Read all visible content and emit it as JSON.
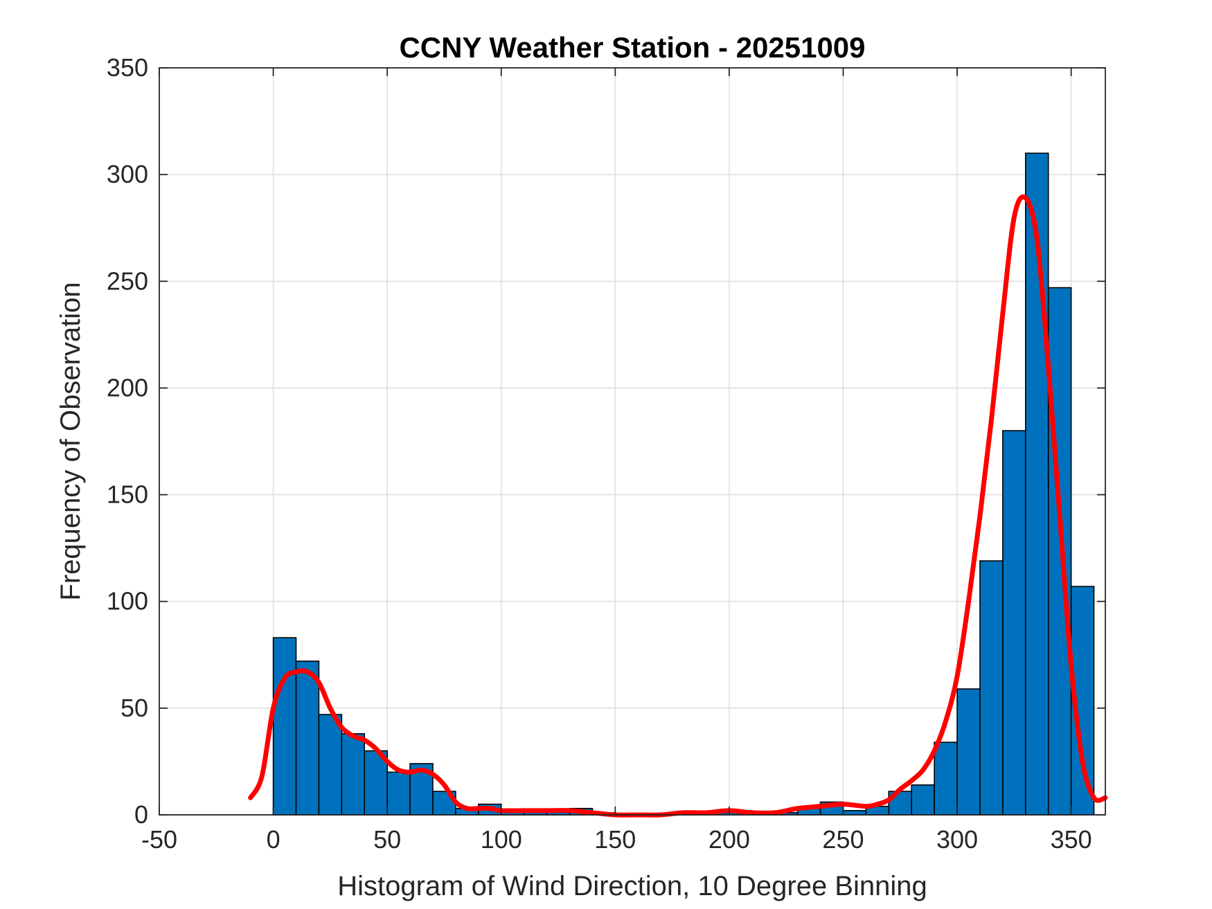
{
  "chart_data": {
    "type": "bar",
    "title": "CCNY Weather Station - 20251009",
    "xlabel": "Histogram of Wind Direction, 10 Degree Binning",
    "ylabel": "Frequency of Observation",
    "xlim": [
      -50,
      365
    ],
    "ylim": [
      0,
      350
    ],
    "xticks": [
      -50,
      0,
      50,
      100,
      150,
      200,
      250,
      300,
      350
    ],
    "yticks": [
      0,
      50,
      100,
      150,
      200,
      250,
      300,
      350
    ],
    "grid": true,
    "bin_width": 10,
    "bins": [
      {
        "start": 0,
        "value": 83
      },
      {
        "start": 10,
        "value": 72
      },
      {
        "start": 20,
        "value": 47
      },
      {
        "start": 30,
        "value": 38
      },
      {
        "start": 40,
        "value": 30
      },
      {
        "start": 50,
        "value": 20
      },
      {
        "start": 60,
        "value": 24
      },
      {
        "start": 70,
        "value": 11
      },
      {
        "start": 80,
        "value": 3
      },
      {
        "start": 90,
        "value": 5
      },
      {
        "start": 100,
        "value": 2
      },
      {
        "start": 110,
        "value": 2
      },
      {
        "start": 120,
        "value": 2
      },
      {
        "start": 130,
        "value": 3
      },
      {
        "start": 140,
        "value": 1
      },
      {
        "start": 150,
        "value": 0
      },
      {
        "start": 160,
        "value": 0
      },
      {
        "start": 170,
        "value": 0
      },
      {
        "start": 180,
        "value": 1
      },
      {
        "start": 190,
        "value": 1
      },
      {
        "start": 200,
        "value": 2
      },
      {
        "start": 210,
        "value": 1
      },
      {
        "start": 220,
        "value": 1
      },
      {
        "start": 230,
        "value": 3
      },
      {
        "start": 240,
        "value": 6
      },
      {
        "start": 250,
        "value": 2
      },
      {
        "start": 260,
        "value": 4
      },
      {
        "start": 270,
        "value": 11
      },
      {
        "start": 280,
        "value": 14
      },
      {
        "start": 290,
        "value": 34
      },
      {
        "start": 300,
        "value": 59
      },
      {
        "start": 310,
        "value": 119
      },
      {
        "start": 320,
        "value": 180
      },
      {
        "start": 330,
        "value": 310
      },
      {
        "start": 340,
        "value": 247
      },
      {
        "start": 350,
        "value": 107
      }
    ],
    "density_curve": {
      "x": [
        -10,
        -5,
        0,
        5,
        10,
        15,
        20,
        25,
        30,
        35,
        40,
        45,
        50,
        55,
        60,
        65,
        70,
        75,
        80,
        85,
        90,
        95,
        100,
        110,
        120,
        130,
        140,
        150,
        160,
        170,
        180,
        190,
        200,
        210,
        220,
        230,
        240,
        250,
        260,
        265,
        270,
        275,
        280,
        285,
        290,
        295,
        300,
        305,
        310,
        315,
        320,
        325,
        330,
        335,
        340,
        345,
        350,
        355,
        360,
        365
      ],
      "y": [
        8,
        18,
        50,
        64,
        67,
        67,
        62,
        50,
        41,
        37,
        35,
        31,
        25,
        21,
        20,
        21,
        19,
        14,
        6,
        3,
        3,
        3,
        2,
        2,
        2,
        2,
        1,
        0,
        0,
        0,
        1,
        1,
        2,
        1,
        1,
        3,
        4,
        5,
        4,
        5,
        7,
        12,
        16,
        21,
        30,
        44,
        65,
        100,
        140,
        185,
        235,
        280,
        289,
        270,
        210,
        140,
        70,
        25,
        8,
        8
      ]
    },
    "colors": {
      "bar_fill": "#0072BD",
      "bar_edge": "#000000",
      "curve": "#FF0000",
      "grid": "#DFDFDF",
      "axes": "#262626",
      "text": "#262626"
    }
  }
}
